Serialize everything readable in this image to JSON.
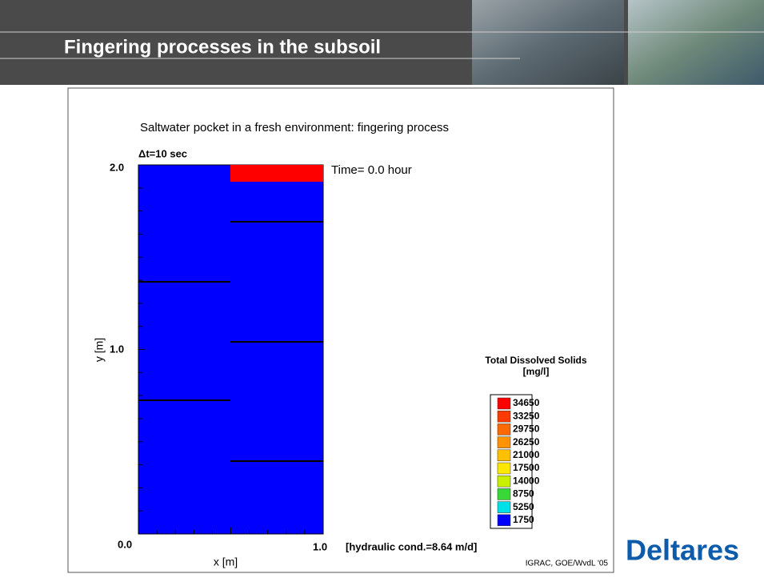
{
  "header": {
    "title": "Fingering processes in the subsoil"
  },
  "plot": {
    "title": "Saltwater pocket in a fresh environment: fingering process",
    "timestep": "Δt=10 sec",
    "time_label": "Time=  0.0 hour",
    "y_axis": {
      "label": "y [m]",
      "ticks": [
        "2.0",
        "1.0",
        "0.0"
      ]
    },
    "x_axis": {
      "label": "x [m]",
      "ticks": [
        "1.0"
      ]
    },
    "note": "[hydraulic cond.=8.64 m/d]",
    "credit": "IGRAC, GOE/WvdL '05",
    "legend": {
      "title": "Total Dissolved Solids",
      "unit": "[mg/l]",
      "items": [
        {
          "label": "34650",
          "color": "#ff0000"
        },
        {
          "label": "33250",
          "color": "#ff3a00"
        },
        {
          "label": "29750",
          "color": "#ff6a00"
        },
        {
          "label": "26250",
          "color": "#ff9400"
        },
        {
          "label": "21000",
          "color": "#ffc000"
        },
        {
          "label": "17500",
          "color": "#ffe800"
        },
        {
          "label": "14000",
          "color": "#c8f000"
        },
        {
          "label": "8750",
          "color": "#38d838"
        },
        {
          "label": "5250",
          "color": "#00e0e8"
        },
        {
          "label": "1750",
          "color": "#0000ff"
        }
      ]
    }
  },
  "footer": {
    "logo": "Deltares"
  }
}
